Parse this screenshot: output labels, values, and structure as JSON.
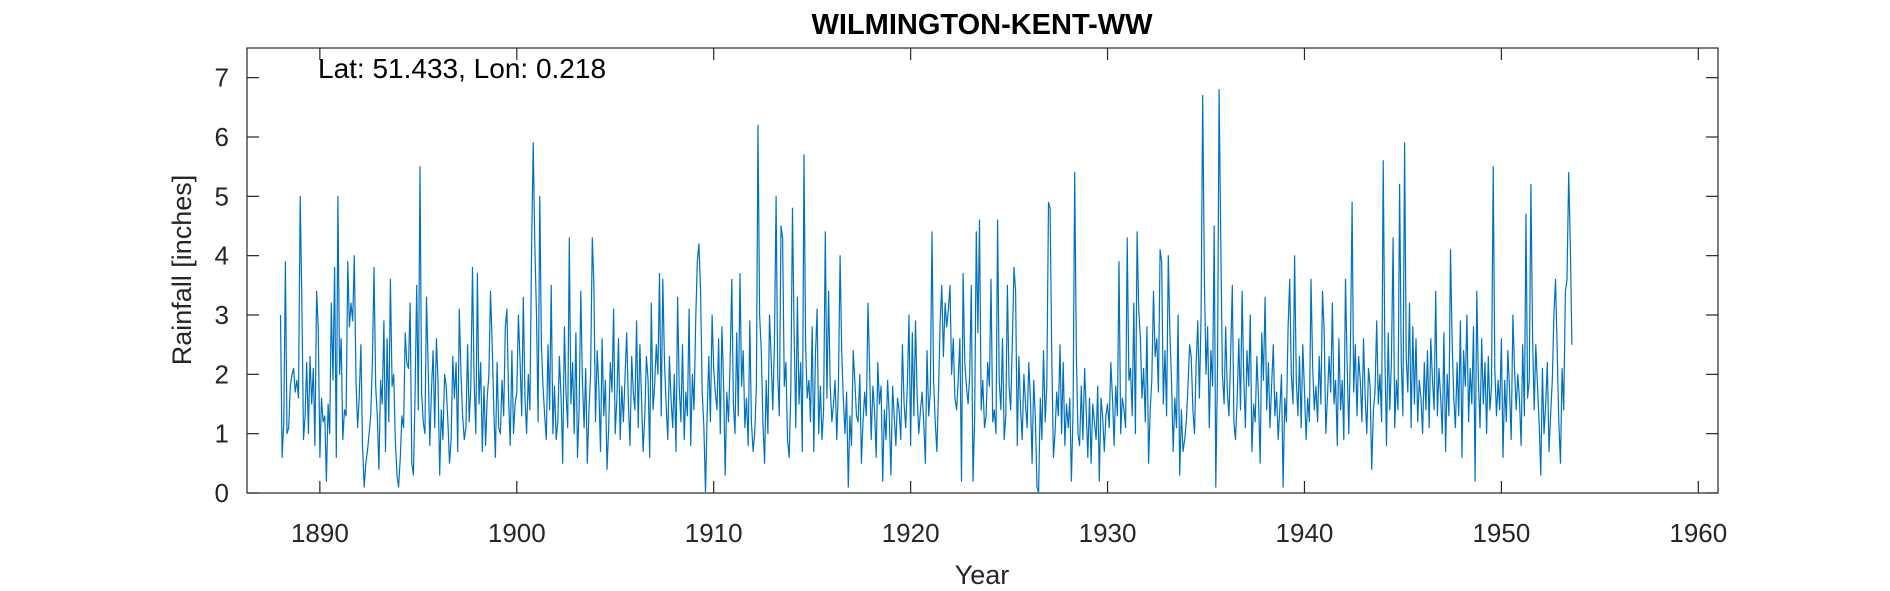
{
  "chart_data": {
    "type": "line",
    "title": "WILMINGTON-KENT-WW",
    "annotation": "Lat: 51.433, Lon: 0.218",
    "xlabel": "Year",
    "ylabel": "Rainfall [inches]",
    "xlim": [
      1886.3,
      1961.0
    ],
    "ylim": [
      0,
      7.5
    ],
    "xticks": [
      1890,
      1900,
      1910,
      1920,
      1930,
      1940,
      1950,
      1960
    ],
    "yticks": [
      0,
      1,
      2,
      3,
      4,
      5,
      6,
      7
    ],
    "grid": false,
    "series_color": "#0072BD",
    "series": [
      {
        "x_start": 1888.0,
        "x_step": 0.083333,
        "values": [
          3.0,
          0.6,
          1.2,
          3.9,
          1.0,
          1.1,
          1.8,
          2.0,
          2.1,
          1.7,
          1.9,
          1.6,
          5.0,
          3.3,
          0.9,
          1.3,
          2.2,
          1.0,
          2.3,
          1.5,
          2.1,
          0.8,
          3.4,
          2.8,
          0.6,
          1.6,
          1.2,
          1.3,
          0.2,
          1.5,
          1.0,
          3.2,
          1.9,
          3.8,
          0.6,
          5.0,
          2.0,
          2.6,
          0.9,
          1.4,
          1.3,
          3.9,
          2.8,
          3.2,
          2.9,
          4.0,
          1.9,
          1.1,
          1.6,
          2.5,
          0.8,
          0.1,
          0.5,
          0.7,
          1.0,
          1.3,
          2.2,
          3.8,
          1.8,
          1.3,
          0.4,
          1.9,
          1.5,
          2.9,
          0.7,
          2.6,
          1.2,
          3.6,
          1.8,
          2.0,
          0.9,
          0.3,
          0.1,
          0.6,
          1.3,
          1.1,
          2.7,
          2.2,
          2.1,
          3.2,
          0.5,
          0.3,
          1.6,
          3.5,
          1.4,
          5.5,
          1.7,
          1.2,
          1.0,
          3.3,
          2.1,
          0.8,
          1.7,
          2.4,
          1.1,
          2.6,
          1.9,
          0.3,
          1.4,
          0.9,
          2.0,
          1.8,
          1.2,
          0.5,
          0.9,
          2.3,
          1.6,
          2.2,
          0.7,
          3.1,
          2.0,
          1.3,
          0.9,
          1.1,
          2.5,
          1.2,
          1.8,
          3.8,
          1.9,
          1.0,
          3.7,
          1.5,
          2.2,
          0.7,
          1.8,
          0.8,
          1.6,
          2.0,
          3.4,
          2.5,
          1.4,
          0.6,
          2.2,
          1.1,
          1.0,
          1.9,
          1.3,
          2.8,
          3.1,
          1.6,
          0.8,
          2.4,
          1.0,
          1.5,
          1.7,
          3.0,
          2.2,
          1.3,
          3.3,
          1.6,
          1.0,
          2.0,
          1.4,
          4.0,
          5.9,
          4.2,
          3.0,
          1.2,
          5.0,
          2.5,
          1.8,
          1.3,
          0.9,
          2.5,
          1.4,
          3.5,
          1.0,
          1.8,
          0.9,
          1.2,
          2.3,
          1.6,
          0.5,
          2.8,
          1.7,
          1.1,
          4.3,
          1.5,
          2.2,
          1.0,
          2.7,
          0.6,
          1.4,
          3.4,
          1.9,
          1.1,
          2.1,
          0.5,
          1.4,
          2.0,
          4.3,
          3.5,
          1.2,
          2.4,
          1.8,
          0.7,
          2.6,
          1.3,
          1.9,
          0.4,
          1.1,
          2.2,
          1.7,
          3.1,
          1.0,
          1.6,
          2.6,
          0.9,
          1.8,
          1.2,
          2.0,
          2.7,
          1.5,
          0.8,
          2.3,
          1.7,
          1.4,
          2.9,
          1.1,
          2.5,
          1.6,
          0.7,
          1.3,
          2.3,
          1.9,
          0.6,
          3.2,
          1.4,
          1.8,
          2.5,
          2.0,
          3.7,
          1.3,
          3.6,
          2.2,
          1.5,
          0.9,
          2.3,
          1.6,
          1.1,
          2.0,
          0.7,
          3.3,
          1.8,
          1.2,
          2.5,
          0.9,
          1.7,
          1.3,
          3.1,
          0.8,
          2.0,
          1.4,
          2.9,
          3.9,
          4.2,
          3.4,
          1.7,
          1.1,
          0.0,
          1.3,
          2.3,
          1.2,
          3.0,
          2.1,
          1.7,
          1.4,
          2.6,
          1.0,
          2.8,
          1.9,
          0.3,
          1.7,
          1.2,
          2.2,
          3.6,
          1.5,
          1.0,
          2.7,
          1.3,
          3.7,
          1.8,
          2.4,
          1.1,
          1.6,
          0.8,
          2.9,
          1.2,
          0.7,
          1.0,
          1.8,
          6.2,
          3.0,
          2.4,
          1.2,
          0.5,
          1.9,
          1.0,
          3.0,
          2.3,
          1.4,
          2.5,
          5.0,
          2.0,
          1.3,
          4.5,
          4.3,
          1.8,
          2.2,
          0.9,
          0.6,
          1.7,
          4.8,
          2.7,
          1.1,
          3.3,
          1.5,
          2.2,
          0.7,
          5.7,
          2.5,
          1.6,
          1.9,
          1.2,
          2.8,
          0.7,
          2.3,
          3.1,
          1.0,
          1.8,
          0.9,
          1.4,
          4.4,
          1.6,
          3.4,
          1.8,
          1.2,
          1.5,
          1.9,
          0.9,
          1.8,
          4.0,
          2.4,
          1.6,
          1.0,
          1.7,
          0.1,
          1.3,
          0.8,
          2.4,
          1.9,
          1.3,
          1.2,
          2.0,
          0.5,
          1.2,
          1.7,
          1.3,
          3.2,
          2.1,
          0.9,
          1.8,
          1.4,
          0.6,
          2.2,
          1.5,
          1.8,
          0.2,
          1.4,
          0.9,
          1.9,
          1.3,
          0.3,
          1.8,
          1.3,
          0.8,
          1.6,
          1.4,
          0.9,
          2.5,
          1.5,
          1.1,
          1.8,
          3.0,
          0.8,
          2.7,
          1.3,
          2.9,
          1.6,
          1.0,
          1.4,
          1.7,
          1.2,
          0.5,
          2.4,
          1.3,
          1.7,
          4.4,
          1.9,
          1.2,
          0.7,
          1.7,
          2.9,
          3.5,
          2.3,
          3.2,
          2.8,
          3.1,
          3.5,
          2.0,
          2.6,
          1.6,
          1.4,
          1.9,
          2.6,
          0.2,
          3.7,
          2.2,
          1.8,
          1.5,
          2.0,
          3.5,
          0.2,
          1.2,
          4.4,
          2.7,
          4.6,
          1.4,
          1.9,
          1.1,
          1.3,
          2.2,
          1.8,
          3.6,
          1.2,
          1.4,
          1.0,
          4.6,
          1.9,
          1.4,
          2.6,
          0.9,
          1.3,
          3.5,
          1.8,
          1.4,
          2.6,
          3.8,
          3.4,
          0.8,
          2.3,
          1.4,
          0.9,
          2.0,
          1.5,
          1.1,
          2.2,
          1.6,
          0.5,
          1.9,
          1.3,
          0.1,
          0.0,
          1.6,
          0.9,
          2.4,
          1.2,
          1.8,
          4.9,
          4.8,
          2.4,
          0.6,
          1.0,
          1.7,
          1.3,
          2.5,
          1.0,
          2.2,
          0.8,
          1.5,
          1.1,
          1.6,
          0.2,
          1.4,
          5.4,
          2.3,
          1.0,
          0.8,
          1.8,
          0.9,
          2.1,
          1.4,
          0.6,
          1.6,
          0.5,
          1.5,
          1.2,
          0.9,
          1.8,
          0.2,
          1.6,
          1.3,
          0.7,
          1.3,
          1.5,
          1.1,
          2.2,
          1.6,
          0.8,
          1.8,
          1.3,
          3.9,
          1.0,
          1.6,
          1.4,
          1.1,
          4.3,
          1.9,
          2.1,
          1.3,
          3.2,
          1.0,
          4.4,
          3.1,
          2.6,
          1.6,
          2.1,
          1.2,
          2.8,
          0.5,
          1.4,
          1.9,
          3.4,
          2.3,
          2.6,
          1.7,
          4.1,
          3.9,
          1.5,
          2.4,
          1.3,
          4.0,
          2.7,
          1.9,
          0.7,
          1.6,
          1.1,
          3.0,
          0.3,
          1.4,
          0.7,
          0.9,
          1.2,
          1.8,
          2.5,
          2.3,
          1.4,
          1.0,
          2.2,
          2.9,
          1.6,
          3.0,
          6.7,
          3.6,
          2.0,
          2.8,
          1.1,
          2.4,
          1.8,
          4.5,
          0.1,
          2.1,
          6.8,
          4.2,
          2.0,
          1.5,
          2.8,
          1.7,
          1.3,
          2.3,
          3.5,
          1.2,
          0.9,
          1.6,
          2.6,
          1.4,
          3.4,
          2.0,
          1.1,
          2.4,
          1.8,
          3.0,
          0.7,
          1.5,
          1.2,
          2.3,
          1.6,
          0.5,
          2.7,
          1.9,
          3.3,
          1.4,
          2.2,
          1.1,
          1.8,
          2.5,
          1.3,
          1.7,
          0.9,
          1.4,
          2.0,
          0.1,
          1.6,
          1.2,
          2.8,
          3.6,
          2.0,
          1.5,
          4.0,
          1.9,
          1.3,
          2.3,
          1.1,
          2.5,
          1.7,
          0.9,
          1.6,
          1.2,
          3.6,
          2.1,
          1.4,
          1.8,
          1.2,
          2.3,
          1.5,
          3.4,
          2.7,
          1.0,
          1.6,
          2.3,
          1.7,
          3.2,
          1.5,
          1.9,
          0.8,
          2.6,
          1.4,
          1.9,
          0.9,
          3.6,
          2.2,
          1.0,
          2.4,
          4.9,
          1.7,
          2.5,
          1.3,
          2.3,
          1.9,
          1.2,
          2.6,
          1.6,
          1.0,
          2.1,
          1.8,
          0.4,
          1.4,
          1.7,
          2.9,
          1.5,
          2.0,
          1.2,
          5.6,
          2.3,
          0.8,
          2.7,
          1.4,
          2.2,
          4.3,
          1.1,
          1.9,
          1.4,
          5.2,
          2.2,
          1.3,
          5.9,
          2.3,
          1.7,
          3.2,
          1.1,
          2.8,
          1.5,
          2.6,
          1.2,
          1.9,
          1.6,
          1.0,
          2.2,
          1.4,
          2.4,
          1.1,
          2.6,
          1.9,
          1.4,
          3.4,
          1.3,
          2.1,
          1.6,
          1.0,
          2.7,
          0.7,
          2.0,
          1.3,
          4.1,
          2.5,
          1.6,
          1.1,
          2.2,
          1.3,
          2.9,
          0.6,
          2.4,
          1.8,
          3.0,
          1.2,
          2.1,
          1.5,
          2.8,
          0.2,
          3.4,
          1.9,
          1.1,
          2.6,
          1.5,
          2.2,
          1.0,
          2.3,
          1.4,
          1.8,
          5.5,
          2.1,
          1.3,
          1.9,
          1.4,
          2.6,
          0.6,
          1.9,
          1.2,
          2.4,
          1.7,
          0.9,
          3.0,
          2.1,
          1.4,
          2.0,
          1.6,
          0.8,
          2.5,
          1.3,
          4.7,
          1.6,
          1.9,
          5.2,
          2.6,
          1.4,
          2.5,
          1.8,
          1.2,
          0.3,
          2.1,
          1.0,
          1.5,
          2.2,
          0.7,
          1.3,
          1.9,
          3.0,
          3.6,
          2.4,
          1.2,
          0.5,
          2.1,
          1.4,
          3.4,
          3.6,
          5.4,
          4.2,
          2.5
        ]
      }
    ]
  }
}
